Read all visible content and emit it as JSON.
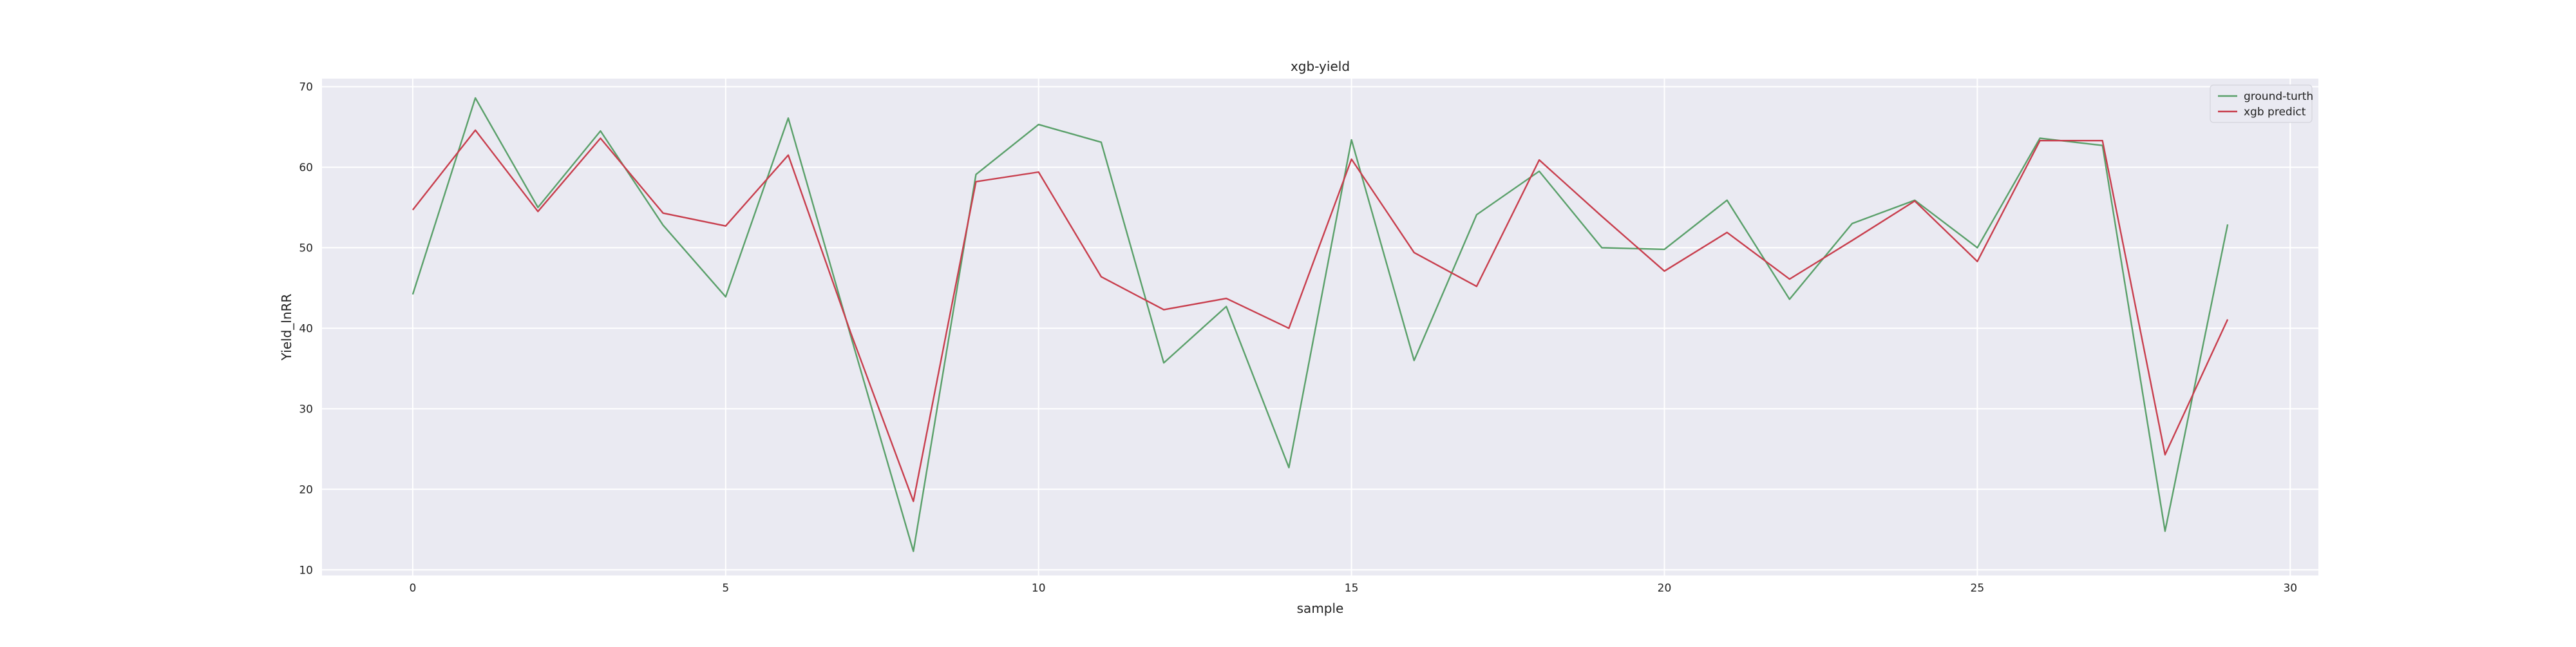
{
  "chart_data": {
    "type": "line",
    "title": "xgb-yield",
    "xlabel": "sample",
    "ylabel": "Yield_lnRR",
    "xlim": [
      -1.45,
      30.45
    ],
    "ylim": [
      9.3,
      71.0
    ],
    "xticks": [
      0,
      5,
      10,
      15,
      20,
      25,
      30
    ],
    "yticks": [
      10,
      20,
      30,
      40,
      50,
      60,
      70
    ],
    "grid": true,
    "legend_position": "top-right",
    "x": [
      0,
      1,
      2,
      3,
      4,
      5,
      6,
      7,
      8,
      9,
      10,
      11,
      12,
      13,
      14,
      15,
      16,
      17,
      18,
      19,
      20,
      21,
      22,
      23,
      24,
      25,
      26,
      27,
      28,
      29
    ],
    "series": [
      {
        "name": "ground-turth",
        "color": "#5aa06a",
        "values": [
          44.2,
          68.6,
          55.0,
          64.5,
          52.8,
          43.9,
          66.1,
          39.0,
          12.3,
          59.1,
          65.3,
          63.1,
          35.7,
          42.7,
          22.7,
          63.4,
          36.0,
          54.1,
          59.5,
          50.0,
          49.8,
          55.9,
          43.6,
          53.0,
          55.9,
          50.0,
          63.6,
          62.7,
          14.8,
          52.9
        ]
      },
      {
        "name": "xgb predict",
        "color": "#c83e4d",
        "values": [
          54.7,
          64.6,
          54.5,
          63.6,
          54.3,
          52.7,
          61.5,
          39.4,
          18.5,
          58.2,
          59.4,
          46.4,
          42.3,
          43.7,
          40.0,
          61.0,
          49.4,
          45.2,
          60.9,
          53.9,
          47.1,
          51.9,
          46.1,
          50.9,
          55.8,
          48.3,
          63.3,
          63.3,
          24.3,
          41.1
        ]
      }
    ]
  },
  "style": {
    "plot_background": "#eaeaf2",
    "grid_color": "#ffffff",
    "text_color": "#222222"
  }
}
